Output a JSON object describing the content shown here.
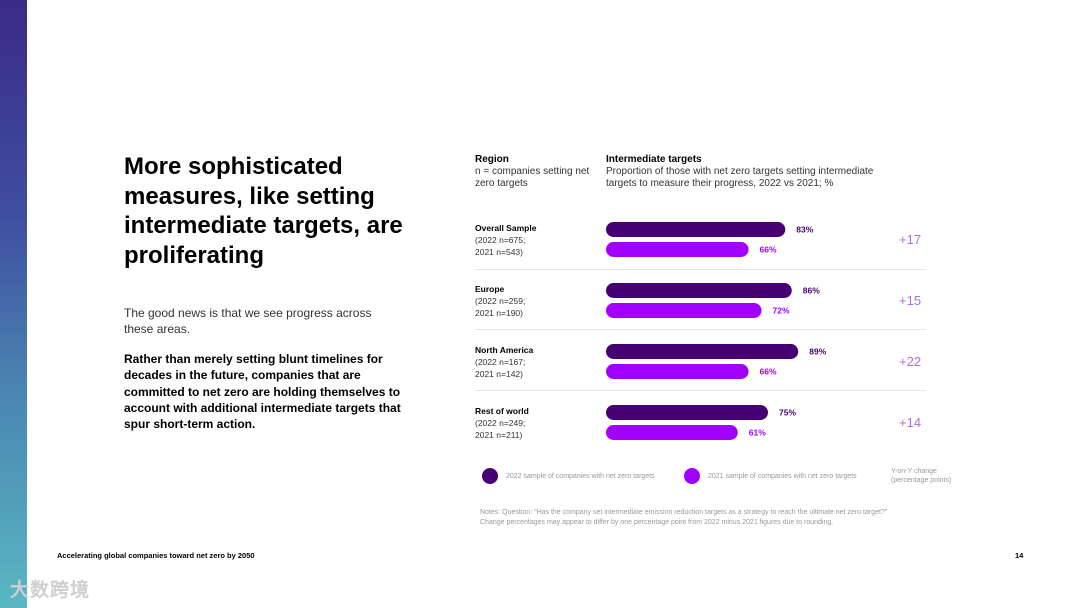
{
  "title": "More sophisticated measures, like setting intermediate targets, are proliferating",
  "intro": "The good news is that we see progress across these areas.",
  "body": "Rather than merely setting blunt timelines for decades in the future, companies that are committed to net zero are holding themselves to account with additional intermediate targets that spur short-term action.",
  "region_header": {
    "title": "Region",
    "subtitle": "n = companies setting net zero targets"
  },
  "targets_header": {
    "title": "Intermediate targets",
    "subtitle": "Proportion of those with net zero targets setting intermediate targets to measure their progress, 2022 vs 2021; %"
  },
  "rows": [
    {
      "name": "Overall Sample",
      "n2022": "(2022 n=675;",
      "n2021": "2021 n=543)"
    },
    {
      "name": "Europe",
      "n2022": "(2022 n=259;",
      "n2021": "2021 n=190)"
    },
    {
      "name": "North America",
      "n2022": "(2022 n=167;",
      "n2021": "2021 n=142)"
    },
    {
      "name": "Rest of world",
      "n2022": "(2022 n=249;",
      "n2021": "2021 n=211)"
    }
  ],
  "chart_data": {
    "type": "bar",
    "orientation": "horizontal",
    "title": "Intermediate targets",
    "categories": [
      "Overall Sample",
      "Europe",
      "North America",
      "Rest of world"
    ],
    "series": [
      {
        "name": "2022 sample of companies with net zero targets",
        "values": [
          83,
          86,
          89,
          75
        ],
        "labels": [
          "83%",
          "86%",
          "89%",
          "75%"
        ],
        "color": "#460073"
      },
      {
        "name": "2021 sample of companies with net zero targets",
        "values": [
          66,
          72,
          66,
          61
        ],
        "labels": [
          "66%",
          "72%",
          "66%",
          "61%"
        ],
        "color": "#a100ff"
      }
    ],
    "changes": [
      "+17",
      "+15",
      "+22",
      "+14"
    ],
    "change_color": "#b06ee0",
    "xlim": [
      0,
      100
    ]
  },
  "legend": {
    "item2022": "2022 sample of companies with net zero targets",
    "item2021": "2021 sample of companies with net zero targets",
    "change_line1": "Y-on-Y change",
    "change_line2": "(percentage points)"
  },
  "notes": {
    "line1": "Notes: Question: \"Has the company set intermediate emission reduction targets as a strategy to reach the ultimate net zero target?\"",
    "line2": "Change percentages may appear to differ by one percentage point from 2022 minus 2021 figures due to rounding."
  },
  "footer": "Accelerating global companies toward net zero by 2050",
  "page_number": "14",
  "watermark": "大数跨境"
}
